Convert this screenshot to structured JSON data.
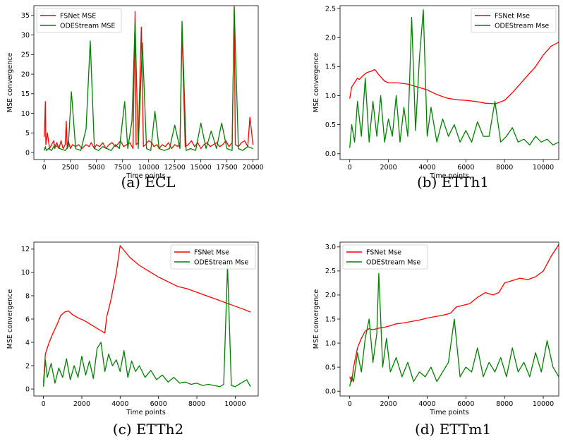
{
  "chart_data": [
    {
      "type": "line",
      "caption": "(a) ECL",
      "xlabel": "Time points",
      "ylabel": "MSE convergence",
      "xlim": [
        -1000,
        20500
      ],
      "ylim": [
        -1.8,
        37.5
      ],
      "xticks": [
        0,
        2500,
        5000,
        7500,
        10000,
        12500,
        15000,
        17500,
        20000
      ],
      "yticks": [
        0,
        5,
        10,
        15,
        20,
        25,
        30,
        35
      ],
      "legend": "top-left",
      "series": [
        {
          "name": "FSNet MSE",
          "color": "#ff0000",
          "x": [
            0,
            100,
            150,
            300,
            500,
            700,
            900,
            1000,
            1200,
            1400,
            1600,
            1800,
            2000,
            2100,
            2200,
            2300,
            2500,
            2700,
            3000,
            3300,
            3600,
            4000,
            4300,
            4500,
            4800,
            5000,
            5300,
            5600,
            5900,
            6200,
            6500,
            6800,
            7000,
            7300,
            7600,
            7900,
            8200,
            8500,
            8700,
            8800,
            9000,
            9300,
            9500,
            9700,
            10000,
            10300,
            10500,
            10800,
            11000,
            11300,
            11600,
            11900,
            12200,
            12500,
            12800,
            13000,
            13200,
            13500,
            13800,
            14100,
            14400,
            14700,
            15000,
            15300,
            15600,
            15900,
            16200,
            16500,
            16800,
            17100,
            17400,
            17700,
            18000,
            18200,
            18300,
            18600,
            18900,
            19200,
            19500,
            19700,
            20000
          ],
          "y": [
            4,
            13,
            2,
            5,
            1,
            2,
            3,
            1,
            2.5,
            1,
            3,
            1,
            2,
            8,
            1,
            3,
            1,
            2,
            1.5,
            2,
            1,
            2,
            1.5,
            2.5,
            1,
            2,
            1.5,
            2.5,
            1,
            2,
            2.5,
            1.5,
            2,
            3,
            1.5,
            2,
            2.5,
            1,
            36,
            2,
            2.5,
            32,
            1.5,
            2,
            3,
            2.5,
            1.5,
            2,
            1,
            2,
            1.5,
            2.5,
            1,
            2,
            1.5,
            2.5,
            31,
            1.5,
            2,
            3,
            1.5,
            2.5,
            1,
            2,
            2.5,
            1.5,
            2,
            2.5,
            1.5,
            2,
            3,
            1.5,
            2.5,
            37.5,
            2,
            1.5,
            2.5,
            3,
            1.5,
            9,
            2
          ]
        },
        {
          "name": "ODEStream MSE",
          "color": "#008000",
          "x": [
            0,
            100,
            200,
            400,
            700,
            1000,
            1500,
            2000,
            2300,
            2600,
            3000,
            3500,
            4000,
            4400,
            4800,
            5200,
            5600,
            6000,
            6400,
            6800,
            7200,
            7700,
            8000,
            8400,
            8700,
            9000,
            9400,
            9800,
            10200,
            10600,
            11000,
            11500,
            12000,
            12500,
            13000,
            13200,
            13600,
            14000,
            14500,
            15000,
            15500,
            16000,
            16500,
            17000,
            17500,
            18000,
            18200,
            18600,
            19000,
            19500,
            20000
          ],
          "y": [
            0.5,
            1.5,
            0.5,
            1,
            0.5,
            2,
            1,
            0.5,
            1.5,
            15.5,
            1,
            0.5,
            6,
            28.5,
            1,
            0.5,
            1.5,
            1,
            0.5,
            2,
            1,
            13,
            1,
            8,
            33.5,
            1,
            28,
            1,
            0.5,
            10.5,
            1,
            0.5,
            1,
            7,
            1,
            33.5,
            0.5,
            1,
            0.5,
            7.5,
            1,
            5.5,
            1,
            7.5,
            1,
            0.5,
            37,
            1,
            0.5,
            1.5,
            1
          ]
        }
      ]
    },
    {
      "type": "line",
      "caption": "(b) ETTh1",
      "xlabel": "Time points",
      "ylabel": "MSE convergence",
      "xlim": [
        -500,
        10800
      ],
      "ylim": [
        -0.1,
        2.55
      ],
      "xticks": [
        0,
        2000,
        4000,
        6000,
        8000,
        10000
      ],
      "yticks": [
        0.0,
        0.5,
        1.0,
        1.5,
        2.0,
        2.5
      ],
      "legend": "top-right",
      "series": [
        {
          "name": "FSNet Mse",
          "color": "#ff0000",
          "x": [
            0,
            100,
            200,
            300,
            400,
            500,
            700,
            900,
            1100,
            1300,
            1500,
            1800,
            2000,
            2500,
            3000,
            3500,
            4000,
            4500,
            5000,
            5500,
            6000,
            6500,
            7000,
            7500,
            7700,
            8000,
            8400,
            8800,
            9200,
            9600,
            10000,
            10400,
            10800
          ],
          "y": [
            0.95,
            1.15,
            1.2,
            1.25,
            1.3,
            1.28,
            1.35,
            1.4,
            1.42,
            1.45,
            1.36,
            1.25,
            1.22,
            1.22,
            1.2,
            1.15,
            1.1,
            1.02,
            0.96,
            0.93,
            0.92,
            0.9,
            0.87,
            0.86,
            0.88,
            0.92,
            1.05,
            1.2,
            1.35,
            1.5,
            1.7,
            1.85,
            1.92
          ]
        },
        {
          "name": "ODEStream Mse",
          "color": "#008000",
          "x": [
            0,
            100,
            250,
            400,
            600,
            800,
            1000,
            1200,
            1400,
            1600,
            1800,
            2000,
            2200,
            2400,
            2600,
            2800,
            3000,
            3200,
            3400,
            3600,
            3800,
            4000,
            4200,
            4500,
            4800,
            5100,
            5400,
            5700,
            6000,
            6300,
            6600,
            6900,
            7200,
            7500,
            7800,
            8100,
            8400,
            8700,
            9000,
            9300,
            9600,
            9900,
            10200,
            10500,
            10800
          ],
          "y": [
            0.1,
            0.5,
            0.2,
            0.9,
            0.3,
            1.3,
            0.2,
            0.9,
            0.3,
            1.0,
            0.2,
            0.6,
            0.3,
            1.0,
            0.2,
            0.8,
            0.3,
            2.35,
            0.4,
            1.65,
            2.48,
            0.3,
            0.8,
            0.2,
            0.6,
            0.3,
            0.5,
            0.2,
            0.4,
            0.2,
            0.55,
            0.3,
            0.3,
            0.9,
            0.2,
            0.3,
            0.45,
            0.2,
            0.25,
            0.15,
            0.3,
            0.2,
            0.25,
            0.15,
            0.2
          ]
        }
      ]
    },
    {
      "type": "line",
      "caption": "(c) ETTh2",
      "xlabel": "Time points",
      "ylabel": "MSE convergence",
      "xlim": [
        -500,
        11200
      ],
      "ylim": [
        -0.6,
        12.6
      ],
      "xticks": [
        0,
        2000,
        4000,
        6000,
        8000,
        10000
      ],
      "yticks": [
        0,
        2,
        4,
        6,
        8,
        10,
        12
      ],
      "legend": "top-right",
      "series": [
        {
          "name": "FSNet Mse",
          "color": "#ff0000",
          "x": [
            0,
            100,
            300,
            500,
            700,
            900,
            1100,
            1300,
            1500,
            1800,
            2100,
            2400,
            2700,
            3000,
            3200,
            3300,
            3500,
            3800,
            4000,
            4200,
            4500,
            5000,
            5500,
            6000,
            6500,
            7000,
            7500,
            8000,
            8500,
            9000,
            9500,
            10000,
            10500,
            10800
          ],
          "y": [
            0.5,
            3.0,
            4.0,
            4.8,
            5.5,
            6.3,
            6.6,
            6.7,
            6.4,
            6.1,
            5.9,
            5.6,
            5.3,
            5.0,
            4.8,
            6.2,
            7.5,
            10.0,
            12.3,
            11.9,
            11.3,
            10.6,
            10.1,
            9.6,
            9.2,
            8.8,
            8.6,
            8.3,
            8.0,
            7.7,
            7.4,
            7.1,
            6.8,
            6.6
          ]
        },
        {
          "name": "ODEStream Mse",
          "color": "#008000",
          "x": [
            0,
            100,
            200,
            400,
            600,
            800,
            1000,
            1200,
            1400,
            1600,
            1800,
            2000,
            2200,
            2400,
            2600,
            2800,
            3000,
            3200,
            3400,
            3600,
            3800,
            4000,
            4200,
            4400,
            4600,
            4800,
            5000,
            5300,
            5600,
            5900,
            6200,
            6500,
            6800,
            7100,
            7400,
            7700,
            8000,
            8300,
            8600,
            8900,
            9200,
            9400,
            9600,
            9800,
            10000,
            10300,
            10600,
            10800
          ],
          "y": [
            0.2,
            2.5,
            1.0,
            2.2,
            0.5,
            1.8,
            1.0,
            2.6,
            0.8,
            2.0,
            1.0,
            2.8,
            1.2,
            2.4,
            0.9,
            3.5,
            4.0,
            1.5,
            3.0,
            2.0,
            2.5,
            1.5,
            3.3,
            1.0,
            2.4,
            1.5,
            2.0,
            1.0,
            1.6,
            0.8,
            1.2,
            0.6,
            1.0,
            0.5,
            0.6,
            0.4,
            0.5,
            0.3,
            0.4,
            0.3,
            0.2,
            0.4,
            10.6,
            0.3,
            0.2,
            0.5,
            0.8,
            0.2
          ]
        }
      ]
    },
    {
      "type": "line",
      "caption": "(d) ETTm1",
      "xlabel": "Time points",
      "ylabel": "MSE convergence",
      "xlim": [
        -500,
        10800
      ],
      "ylim": [
        -0.1,
        3.1
      ],
      "xticks": [
        0,
        2000,
        4000,
        6000,
        8000,
        10000
      ],
      "yticks": [
        0.0,
        0.5,
        1.0,
        1.5,
        2.0,
        2.5,
        3.0
      ],
      "legend": "top-left",
      "series": [
        {
          "name": "FSNet Mse",
          "color": "#ff0000",
          "x": [
            0,
            100,
            200,
            300,
            400,
            500,
            600,
            800,
            1000,
            1200,
            1400,
            1600,
            1800,
            2000,
            2400,
            2800,
            3200,
            3600,
            4000,
            4400,
            4800,
            5200,
            5500,
            5800,
            6200,
            6600,
            7000,
            7400,
            7700,
            8000,
            8400,
            8800,
            9200,
            9600,
            10000,
            10400,
            10800
          ],
          "y": [
            0.3,
            0.2,
            0.5,
            0.7,
            0.9,
            1.0,
            1.1,
            1.25,
            1.3,
            1.28,
            1.3,
            1.32,
            1.33,
            1.35,
            1.4,
            1.42,
            1.45,
            1.48,
            1.52,
            1.55,
            1.58,
            1.62,
            1.75,
            1.78,
            1.82,
            1.95,
            2.05,
            2.0,
            2.05,
            2.25,
            2.3,
            2.35,
            2.32,
            2.38,
            2.5,
            2.8,
            3.05
          ]
        },
        {
          "name": "ODEStream Mse",
          "color": "#008000",
          "x": [
            0,
            100,
            200,
            400,
            600,
            800,
            1000,
            1200,
            1400,
            1500,
            1700,
            1900,
            2100,
            2400,
            2700,
            3000,
            3300,
            3600,
            3900,
            4200,
            4500,
            4800,
            5100,
            5400,
            5700,
            6000,
            6300,
            6600,
            6900,
            7200,
            7500,
            7800,
            8100,
            8400,
            8700,
            9000,
            9300,
            9600,
            9900,
            10200,
            10500,
            10800
          ],
          "y": [
            0.1,
            0.3,
            0.2,
            0.8,
            0.4,
            1.1,
            1.5,
            0.6,
            1.2,
            2.45,
            0.5,
            1.1,
            0.4,
            0.7,
            0.3,
            0.6,
            0.2,
            0.4,
            0.3,
            0.5,
            0.2,
            0.4,
            0.6,
            1.5,
            0.3,
            0.5,
            0.4,
            0.9,
            0.3,
            0.6,
            0.4,
            0.7,
            0.3,
            0.9,
            0.4,
            0.6,
            0.3,
            0.8,
            0.4,
            1.05,
            0.5,
            0.3
          ]
        }
      ]
    }
  ]
}
